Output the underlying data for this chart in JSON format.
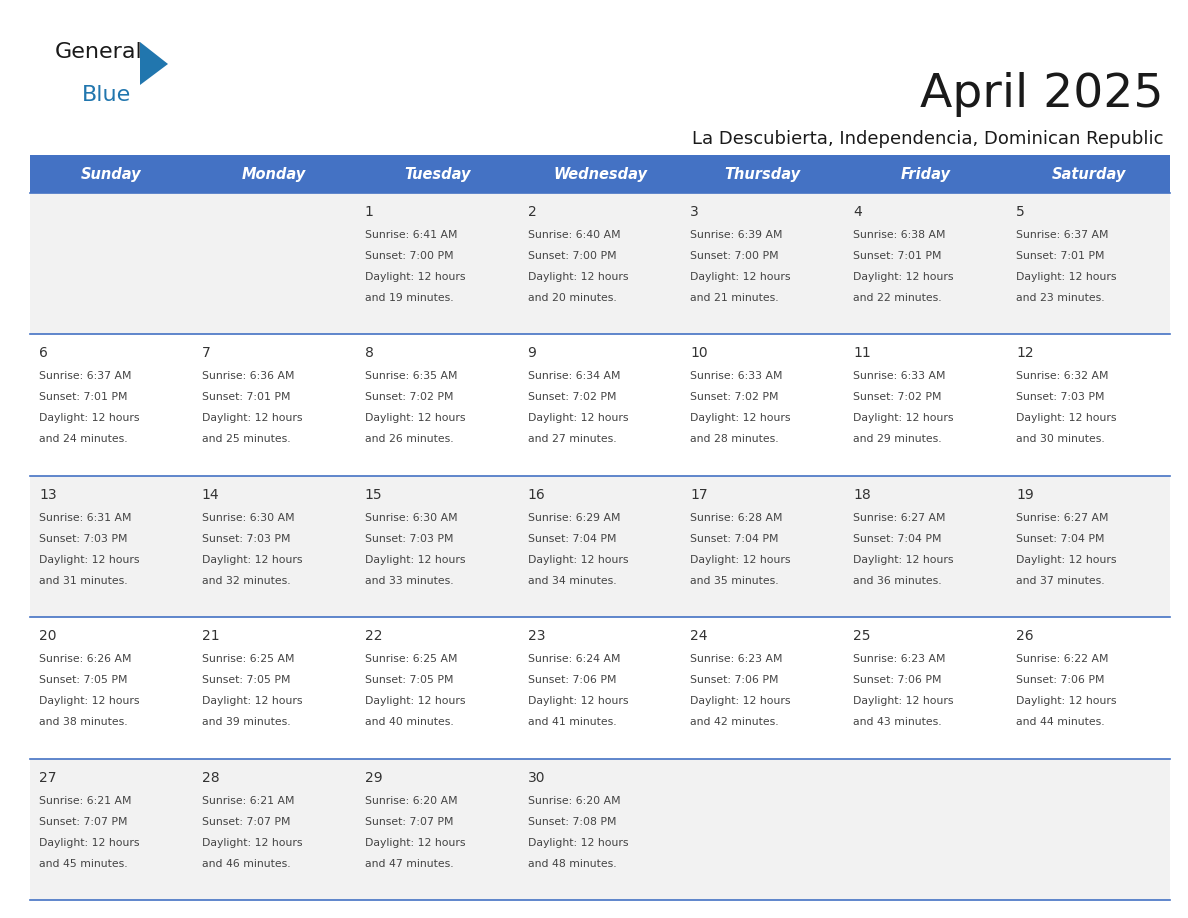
{
  "title": "April 2025",
  "subtitle": "La Descubierta, Independencia, Dominican Republic",
  "header_bg_color": "#4472C4",
  "header_text_color": "#FFFFFF",
  "weekdays": [
    "Sunday",
    "Monday",
    "Tuesday",
    "Wednesday",
    "Thursday",
    "Friday",
    "Saturday"
  ],
  "row_bg_colors": [
    "#F2F2F2",
    "#FFFFFF"
  ],
  "cell_border_color": "#4472C4",
  "day_text_color": "#333333",
  "info_text_color": "#444444",
  "title_color": "#1a1a1a",
  "subtitle_color": "#1a1a1a",
  "logo_general_color": "#1a1a1a",
  "logo_blue_color": "#2176AE",
  "logo_triangle_color": "#2176AE",
  "calendar_data": [
    [
      {
        "day": "",
        "sunrise": "",
        "sunset": "",
        "daylight_label": ""
      },
      {
        "day": "",
        "sunrise": "",
        "sunset": "",
        "daylight_label": ""
      },
      {
        "day": "1",
        "sunrise": "6:41 AM",
        "sunset": "7:00 PM",
        "daylight_label": "19"
      },
      {
        "day": "2",
        "sunrise": "6:40 AM",
        "sunset": "7:00 PM",
        "daylight_label": "20"
      },
      {
        "day": "3",
        "sunrise": "6:39 AM",
        "sunset": "7:00 PM",
        "daylight_label": "21"
      },
      {
        "day": "4",
        "sunrise": "6:38 AM",
        "sunset": "7:01 PM",
        "daylight_label": "22"
      },
      {
        "day": "5",
        "sunrise": "6:37 AM",
        "sunset": "7:01 PM",
        "daylight_label": "23"
      }
    ],
    [
      {
        "day": "6",
        "sunrise": "6:37 AM",
        "sunset": "7:01 PM",
        "daylight_label": "24"
      },
      {
        "day": "7",
        "sunrise": "6:36 AM",
        "sunset": "7:01 PM",
        "daylight_label": "25"
      },
      {
        "day": "8",
        "sunrise": "6:35 AM",
        "sunset": "7:02 PM",
        "daylight_label": "26"
      },
      {
        "day": "9",
        "sunrise": "6:34 AM",
        "sunset": "7:02 PM",
        "daylight_label": "27"
      },
      {
        "day": "10",
        "sunrise": "6:33 AM",
        "sunset": "7:02 PM",
        "daylight_label": "28"
      },
      {
        "day": "11",
        "sunrise": "6:33 AM",
        "sunset": "7:02 PM",
        "daylight_label": "29"
      },
      {
        "day": "12",
        "sunrise": "6:32 AM",
        "sunset": "7:03 PM",
        "daylight_label": "30"
      }
    ],
    [
      {
        "day": "13",
        "sunrise": "6:31 AM",
        "sunset": "7:03 PM",
        "daylight_label": "31"
      },
      {
        "day": "14",
        "sunrise": "6:30 AM",
        "sunset": "7:03 PM",
        "daylight_label": "32"
      },
      {
        "day": "15",
        "sunrise": "6:30 AM",
        "sunset": "7:03 PM",
        "daylight_label": "33"
      },
      {
        "day": "16",
        "sunrise": "6:29 AM",
        "sunset": "7:04 PM",
        "daylight_label": "34"
      },
      {
        "day": "17",
        "sunrise": "6:28 AM",
        "sunset": "7:04 PM",
        "daylight_label": "35"
      },
      {
        "day": "18",
        "sunrise": "6:27 AM",
        "sunset": "7:04 PM",
        "daylight_label": "36"
      },
      {
        "day": "19",
        "sunrise": "6:27 AM",
        "sunset": "7:04 PM",
        "daylight_label": "37"
      }
    ],
    [
      {
        "day": "20",
        "sunrise": "6:26 AM",
        "sunset": "7:05 PM",
        "daylight_label": "38"
      },
      {
        "day": "21",
        "sunrise": "6:25 AM",
        "sunset": "7:05 PM",
        "daylight_label": "39"
      },
      {
        "day": "22",
        "sunrise": "6:25 AM",
        "sunset": "7:05 PM",
        "daylight_label": "40"
      },
      {
        "day": "23",
        "sunrise": "6:24 AM",
        "sunset": "7:06 PM",
        "daylight_label": "41"
      },
      {
        "day": "24",
        "sunrise": "6:23 AM",
        "sunset": "7:06 PM",
        "daylight_label": "42"
      },
      {
        "day": "25",
        "sunrise": "6:23 AM",
        "sunset": "7:06 PM",
        "daylight_label": "43"
      },
      {
        "day": "26",
        "sunrise": "6:22 AM",
        "sunset": "7:06 PM",
        "daylight_label": "44"
      }
    ],
    [
      {
        "day": "27",
        "sunrise": "6:21 AM",
        "sunset": "7:07 PM",
        "daylight_label": "45"
      },
      {
        "day": "28",
        "sunrise": "6:21 AM",
        "sunset": "7:07 PM",
        "daylight_label": "46"
      },
      {
        "day": "29",
        "sunrise": "6:20 AM",
        "sunset": "7:07 PM",
        "daylight_label": "47"
      },
      {
        "day": "30",
        "sunrise": "6:20 AM",
        "sunset": "7:08 PM",
        "daylight_label": "48"
      },
      {
        "day": "",
        "sunrise": "",
        "sunset": "",
        "daylight_label": ""
      },
      {
        "day": "",
        "sunrise": "",
        "sunset": "",
        "daylight_label": ""
      },
      {
        "day": "",
        "sunrise": "",
        "sunset": "",
        "daylight_label": ""
      }
    ]
  ]
}
